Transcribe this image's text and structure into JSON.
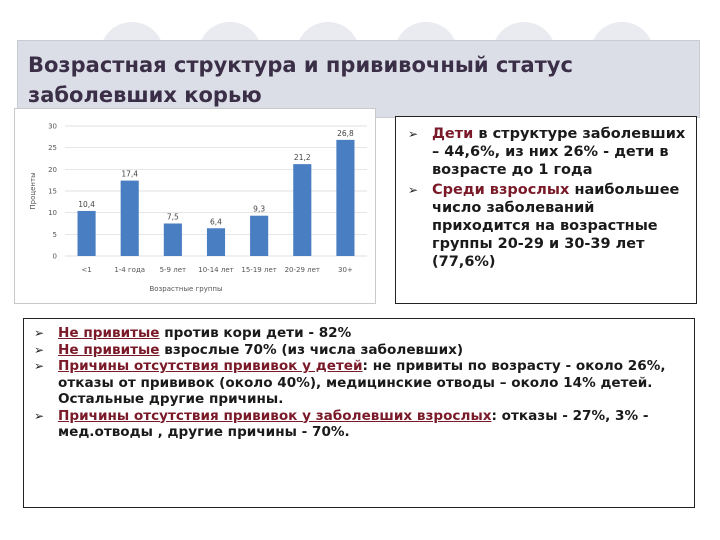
{
  "title": {
    "line1": "Возрастная структура и прививочный статус",
    "line2": "заболевших  корью"
  },
  "chart_data": {
    "type": "bar",
    "categories": [
      "<1",
      "1-4 года",
      "5-9 лет",
      "10-14 лет",
      "15-19 лет",
      "20-29 лет",
      "30+"
    ],
    "values": [
      10.4,
      17.4,
      7.5,
      6.4,
      9.3,
      21.2,
      26.8
    ],
    "value_labels": [
      "10,4",
      "17,4",
      "7,5",
      "6,4",
      "9,3",
      "21,2",
      "26,8"
    ],
    "xlabel": "Возрастные группы",
    "ylabel": "Проценты",
    "ylim": [
      0,
      30
    ],
    "yticks": [
      "0",
      "5",
      "10",
      "15",
      "20",
      "25",
      "30"
    ],
    "grid": true,
    "bar_color": "#4a7ec2"
  },
  "right_bullets": [
    {
      "pre": "",
      "hl": "Дети",
      "post": " в структуре заболевших – 44,6%, из них 26% - дети в возрасте до 1 года"
    },
    {
      "pre": "",
      "hl": "Среди взрослых",
      "post": " наибольшее число заболеваний приходится на возрастные группы 20-29 и 30-39 лет (77,6%)"
    }
  ],
  "bottom_bullets": [
    {
      "hl": "Не привитые",
      "post": " против кори дети - 82%"
    },
    {
      "hl": "Не привитые",
      "post": " взрослые  70% (из числа заболевших)"
    },
    {
      "hl": "Причины отсутствия прививок у детей",
      "post": ": не привиты по возрасту - около 26%, отказы от прививок (около 40%), медицинские отводы – около 14% детей. Остальные другие причины."
    },
    {
      "hl": "Причины отсутствия прививок у заболевших взрослых",
      "post": ": отказы - 27%, 3% - мед.отводы , другие причины - 70%."
    }
  ],
  "colors": {
    "title_bg": "#dcdee7",
    "highlight": "#7a1a28",
    "bar": "#4a7ec2"
  },
  "icons": {
    "bullet": "arrow-bullet-icon"
  }
}
